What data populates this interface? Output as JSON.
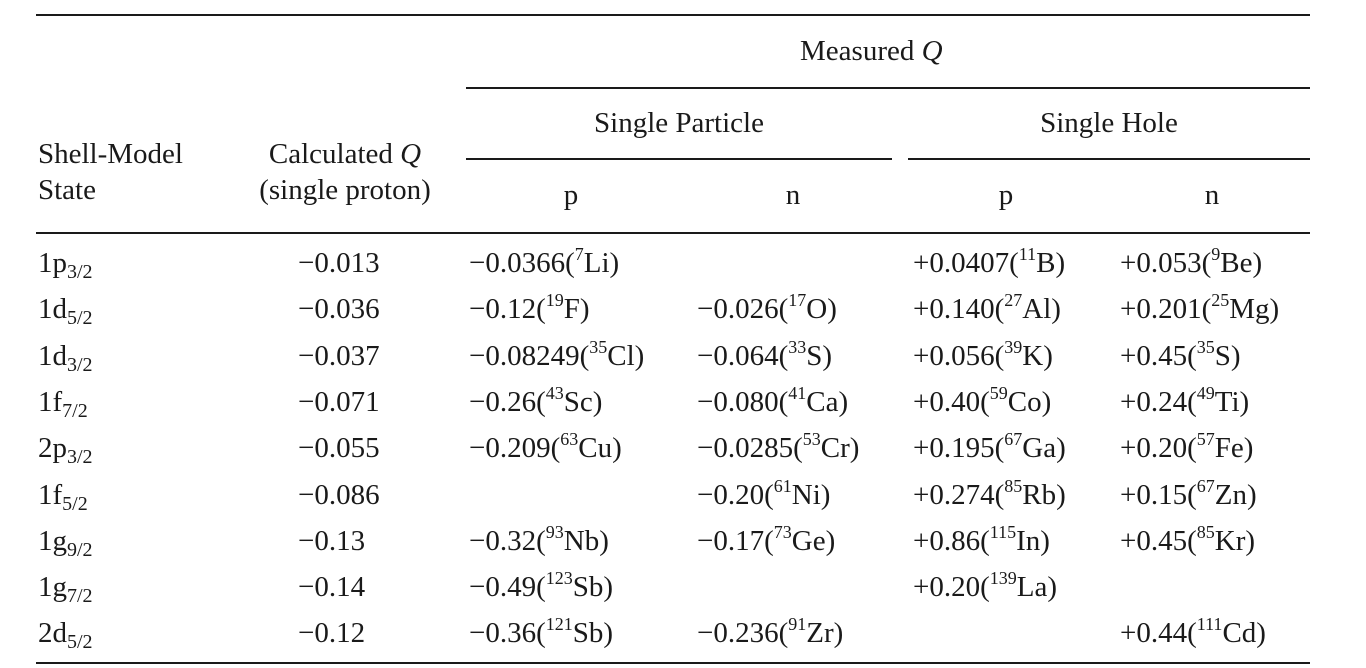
{
  "header": {
    "measured_q": "Measured",
    "q_symbol": "Q",
    "single_particle": "Single Particle",
    "single_hole": "Single Hole",
    "state_line1": "Shell-Model",
    "state_line2": "State",
    "calc_line1": "Calculated",
    "calc_line2": "(single proton)",
    "sp_p": "p",
    "sp_n": "n",
    "sh_p": "p",
    "sh_n": "n"
  },
  "rows": [
    {
      "n": "1",
      "l": "p",
      "j": "3/2",
      "calc": "−0.013",
      "spp": {
        "v": "−0.0366(",
        "a": "7",
        "el": "Li)"
      },
      "spn": null,
      "shp": {
        "v": "+0.0407(",
        "a": "11",
        "el": "B)"
      },
      "shn": {
        "v": "+0.053(",
        "a": "9",
        "el": "Be)"
      }
    },
    {
      "n": "1",
      "l": "d",
      "j": "5/2",
      "calc": "−0.036",
      "spp": {
        "v": "−0.12(",
        "a": "19",
        "el": "F)"
      },
      "spn": {
        "v": "−0.026(",
        "a": "17",
        "el": "O)"
      },
      "shp": {
        "v": "+0.140(",
        "a": "27",
        "el": "Al)"
      },
      "shn": {
        "v": "+0.201(",
        "a": "25",
        "el": "Mg)"
      }
    },
    {
      "n": "1",
      "l": "d",
      "j": "3/2",
      "calc": "−0.037",
      "spp": {
        "v": "−0.08249(",
        "a": "35",
        "el": "Cl)"
      },
      "spn": {
        "v": "−0.064(",
        "a": "33",
        "el": "S)"
      },
      "shp": {
        "v": "+0.056(",
        "a": "39",
        "el": "K)"
      },
      "shn": {
        "v": "+0.45(",
        "a": "35",
        "el": "S)"
      }
    },
    {
      "n": "1",
      "l": "f",
      "j": "7/2",
      "calc": "−0.071",
      "spp": {
        "v": "−0.26(",
        "a": "43",
        "el": "Sc)"
      },
      "spn": {
        "v": "−0.080(",
        "a": "41",
        "el": "Ca)"
      },
      "shp": {
        "v": "+0.40(",
        "a": "59",
        "el": "Co)"
      },
      "shn": {
        "v": "+0.24(",
        "a": "49",
        "el": "Ti)"
      }
    },
    {
      "n": "2",
      "l": "p",
      "j": "3/2",
      "calc": "−0.055",
      "spp": {
        "v": "−0.209(",
        "a": "63",
        "el": "Cu)"
      },
      "spn": {
        "v": "−0.0285(",
        "a": "53",
        "el": "Cr)"
      },
      "shp": {
        "v": "+0.195(",
        "a": "67",
        "el": "Ga)"
      },
      "shn": {
        "v": "+0.20(",
        "a": "57",
        "el": "Fe)"
      }
    },
    {
      "n": "1",
      "l": "f",
      "j": "5/2",
      "calc": "−0.086",
      "spp": null,
      "spn": {
        "v": "−0.20(",
        "a": "61",
        "el": "Ni)"
      },
      "shp": {
        "v": "+0.274(",
        "a": "85",
        "el": "Rb)"
      },
      "shn": {
        "v": "+0.15(",
        "a": "67",
        "el": "Zn)"
      }
    },
    {
      "n": "1",
      "l": "g",
      "j": "9/2",
      "calc": "−0.13",
      "spp": {
        "v": "−0.32(",
        "a": "93",
        "el": "Nb)"
      },
      "spn": {
        "v": "−0.17(",
        "a": "73",
        "el": "Ge)"
      },
      "shp": {
        "v": "+0.86(",
        "a": "115",
        "el": "In)"
      },
      "shn": {
        "v": "+0.45(",
        "a": "85",
        "el": "Kr)"
      }
    },
    {
      "n": "1",
      "l": "g",
      "j": "7/2",
      "calc": "−0.14",
      "spp": {
        "v": "−0.49(",
        "a": "123",
        "el": "Sb)"
      },
      "spn": null,
      "shp": {
        "v": "+0.20(",
        "a": "139",
        "el": "La)"
      },
      "shn": null
    },
    {
      "n": "2",
      "l": "d",
      "j": "5/2",
      "calc": "−0.12",
      "spp": {
        "v": "−0.36(",
        "a": "121",
        "el": "Sb)"
      },
      "spn": {
        "v": "−0.236(",
        "a": "91",
        "el": "Zr)"
      },
      "shp": null,
      "shn": {
        "v": "+0.44(",
        "a": "111",
        "el": "Cd)"
      }
    }
  ]
}
